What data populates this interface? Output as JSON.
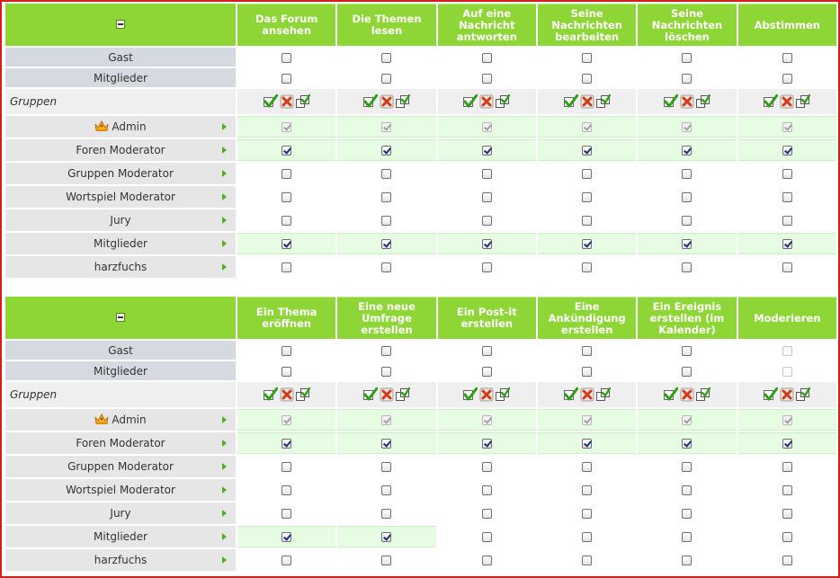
{
  "tables": [
    {
      "columns": [
        "Das Forum ansehen",
        "Die Themen lesen",
        "Auf eine Nachricht antworten",
        "Seine Nachrichten bearbeiten",
        "Seine Nachrichten löschen",
        "Abstimmen"
      ],
      "top_rows": [
        {
          "label": "Gast",
          "light": [
            false,
            false,
            false,
            false,
            false,
            false
          ]
        },
        {
          "label": "Mitglieder",
          "light": [
            false,
            false,
            false,
            false,
            false,
            false
          ]
        }
      ],
      "groups_label": "Gruppen",
      "group_rows": [
        {
          "label": "Admin",
          "crown": true,
          "highlight": [
            true,
            true,
            true,
            true,
            true,
            true
          ],
          "checked": [
            true,
            true,
            true,
            true,
            true,
            true
          ],
          "disabled": true
        },
        {
          "label": "Foren Moderator",
          "highlight": [
            true,
            true,
            true,
            true,
            true,
            true
          ],
          "checked": [
            true,
            true,
            true,
            true,
            true,
            true
          ]
        },
        {
          "label": "Gruppen Moderator",
          "highlight": [
            false,
            false,
            false,
            false,
            false,
            false
          ],
          "checked": [
            false,
            false,
            false,
            false,
            false,
            false
          ]
        },
        {
          "label": "Wortspiel Moderator",
          "highlight": [
            false,
            false,
            false,
            false,
            false,
            false
          ],
          "checked": [
            false,
            false,
            false,
            false,
            false,
            false
          ]
        },
        {
          "label": "Jury",
          "highlight": [
            false,
            false,
            false,
            false,
            false,
            false
          ],
          "checked": [
            false,
            false,
            false,
            false,
            false,
            false
          ]
        },
        {
          "label": "Mitglieder",
          "highlight": [
            true,
            true,
            true,
            true,
            true,
            true
          ],
          "checked": [
            true,
            true,
            true,
            true,
            true,
            true
          ]
        },
        {
          "label": "harzfuchs",
          "highlight": [
            false,
            false,
            false,
            false,
            false,
            false
          ],
          "checked": [
            false,
            false,
            false,
            false,
            false,
            false
          ]
        }
      ]
    },
    {
      "columns": [
        "Ein Thema eröffnen",
        "Eine neue Umfrage erstellen",
        "Ein Post-it erstellen",
        "Eine Ankündigung erstellen",
        "Ein Ereignis erstellen (im Kalender)",
        "Moderieren"
      ],
      "top_rows": [
        {
          "label": "Gast",
          "light": [
            false,
            false,
            false,
            false,
            false,
            true
          ]
        },
        {
          "label": "Mitglieder",
          "light": [
            false,
            false,
            false,
            false,
            false,
            true
          ]
        }
      ],
      "groups_label": "Gruppen",
      "group_rows": [
        {
          "label": "Admin",
          "crown": true,
          "highlight": [
            true,
            true,
            true,
            true,
            true,
            true
          ],
          "checked": [
            true,
            true,
            true,
            true,
            true,
            true
          ],
          "disabled": true
        },
        {
          "label": "Foren Moderator",
          "highlight": [
            true,
            true,
            true,
            true,
            true,
            true
          ],
          "checked": [
            true,
            true,
            true,
            true,
            true,
            true
          ]
        },
        {
          "label": "Gruppen Moderator",
          "highlight": [
            false,
            false,
            false,
            false,
            false,
            false
          ],
          "checked": [
            false,
            false,
            false,
            false,
            false,
            false
          ]
        },
        {
          "label": "Wortspiel Moderator",
          "highlight": [
            false,
            false,
            false,
            false,
            false,
            false
          ],
          "checked": [
            false,
            false,
            false,
            false,
            false,
            false
          ]
        },
        {
          "label": "Jury",
          "highlight": [
            false,
            false,
            false,
            false,
            false,
            false
          ],
          "checked": [
            false,
            false,
            false,
            false,
            false,
            false
          ]
        },
        {
          "label": "Mitglieder",
          "highlight": [
            true,
            true,
            false,
            false,
            false,
            false
          ],
          "checked": [
            true,
            true,
            false,
            false,
            false,
            false
          ]
        },
        {
          "label": "harzfuchs",
          "highlight": [
            false,
            false,
            false,
            false,
            false,
            false
          ],
          "checked": [
            false,
            false,
            false,
            false,
            false,
            false
          ]
        }
      ]
    }
  ],
  "icons": {
    "toggle": "collapse-icon",
    "select_all": "check-all-icon",
    "deselect_all": "uncheck-all-icon",
    "invert": "invert-selection-icon",
    "crown": "crown-icon",
    "row_arrow": "arrow-right-icon"
  },
  "colors": {
    "header_green": "#8ed635",
    "highlight_row": "#e6fde3",
    "frame_red": "#d91b1b"
  }
}
